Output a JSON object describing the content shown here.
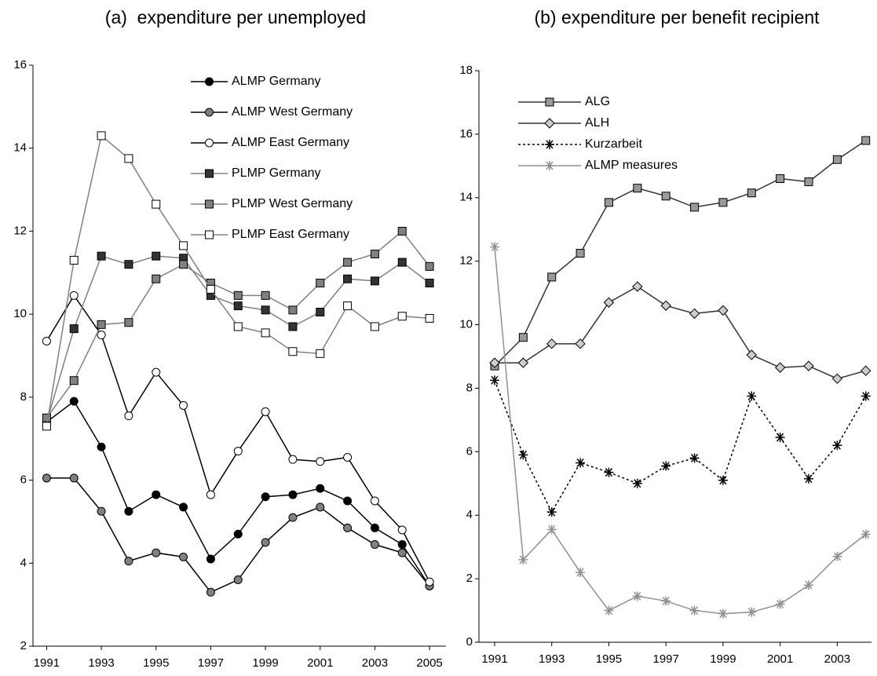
{
  "chart_data": [
    {
      "type": "line",
      "title": "(a)  expenditure per unemployed",
      "x": [
        1991,
        1992,
        1993,
        1994,
        1995,
        1996,
        1997,
        1998,
        1999,
        2000,
        2001,
        2002,
        2003,
        2004,
        2005
      ],
      "xlim": [
        1990.5,
        2005.6
      ],
      "xticks": [
        1991,
        1993,
        1995,
        1997,
        1999,
        2001,
        2003,
        2005
      ],
      "ylim": [
        2,
        16
      ],
      "yticks": [
        2,
        4,
        6,
        8,
        10,
        12,
        14,
        16
      ],
      "series": [
        {
          "name": "ALMP Germany",
          "color": "#000000",
          "marker": "circle",
          "marker_fill": "#000000",
          "values": [
            7.4,
            7.9,
            6.8,
            5.25,
            5.65,
            5.35,
            4.1,
            4.7,
            5.6,
            5.65,
            5.8,
            5.5,
            4.85,
            4.45,
            3.45
          ]
        },
        {
          "name": "ALMP West Germany",
          "color": "#000000",
          "marker": "circle",
          "marker_fill": "#808080",
          "values": [
            6.05,
            6.05,
            5.25,
            4.05,
            4.25,
            4.15,
            3.3,
            3.6,
            4.5,
            5.1,
            5.35,
            4.85,
            4.45,
            4.25,
            3.45
          ]
        },
        {
          "name": "ALMP East Germany",
          "color": "#000000",
          "marker": "circle",
          "marker_fill": "#ffffff",
          "values": [
            9.35,
            10.45,
            9.5,
            7.55,
            8.6,
            7.8,
            5.65,
            6.7,
            7.65,
            6.5,
            6.45,
            6.55,
            5.5,
            4.8,
            3.55
          ]
        },
        {
          "name": "PLMP Germany",
          "color": "#808080",
          "marker": "square",
          "marker_fill": "#333333",
          "values": [
            7.4,
            9.65,
            11.4,
            11.2,
            11.4,
            11.35,
            10.45,
            10.2,
            10.1,
            9.7,
            10.05,
            10.85,
            10.8,
            11.25,
            10.75
          ]
        },
        {
          "name": "PLMP West Germany",
          "color": "#808080",
          "marker": "square",
          "marker_fill": "#808080",
          "values": [
            7.5,
            8.4,
            9.75,
            9.8,
            10.85,
            11.2,
            10.75,
            10.45,
            10.45,
            10.1,
            10.75,
            11.25,
            11.45,
            12.0,
            11.15
          ]
        },
        {
          "name": "PLMP East Germany",
          "color": "#808080",
          "marker": "square",
          "marker_fill": "#ffffff",
          "values": [
            7.3,
            11.3,
            14.3,
            13.75,
            12.65,
            11.65,
            10.6,
            9.7,
            9.55,
            9.1,
            9.05,
            10.2,
            9.7,
            9.95,
            9.9
          ]
        }
      ]
    },
    {
      "type": "line",
      "title": "(b) expenditure per benefit recipient",
      "x": [
        1991,
        1992,
        1993,
        1994,
        1995,
        1996,
        1997,
        1998,
        1999,
        2000,
        2001,
        2002,
        2003,
        2004
      ],
      "xlim": [
        1990.45,
        2004.2
      ],
      "xticks": [
        1991,
        1993,
        1995,
        1997,
        1999,
        2001,
        2003
      ],
      "ylim": [
        0,
        18
      ],
      "yticks": [
        0,
        2,
        4,
        6,
        8,
        10,
        12,
        14,
        16,
        18
      ],
      "series": [
        {
          "name": "ALG",
          "color": "#333333",
          "marker": "square",
          "marker_fill": "#999999",
          "values": [
            8.7,
            9.6,
            11.5,
            12.25,
            13.85,
            14.3,
            14.05,
            13.7,
            13.85,
            14.15,
            14.6,
            14.5,
            15.2,
            15.8
          ]
        },
        {
          "name": "ALH",
          "color": "#333333",
          "marker": "diamond",
          "marker_fill": "#cccccc",
          "values": [
            8.8,
            8.8,
            9.4,
            9.4,
            10.7,
            11.2,
            10.6,
            10.35,
            10.45,
            9.05,
            8.65,
            8.7,
            8.3,
            8.55
          ]
        },
        {
          "name": "Kurzarbeit",
          "color": "#000000",
          "marker": "star",
          "dash": true,
          "values": [
            8.25,
            5.9,
            4.1,
            5.65,
            5.35,
            5.0,
            5.55,
            5.8,
            5.1,
            7.75,
            6.45,
            5.15,
            6.2,
            7.75
          ]
        },
        {
          "name": "ALMP measures",
          "color": "#909090",
          "marker": "star",
          "values": [
            12.45,
            2.6,
            3.55,
            2.2,
            1.0,
            1.45,
            1.3,
            1.0,
            0.9,
            0.95,
            1.2,
            1.8,
            2.7,
            3.4
          ]
        }
      ]
    }
  ]
}
